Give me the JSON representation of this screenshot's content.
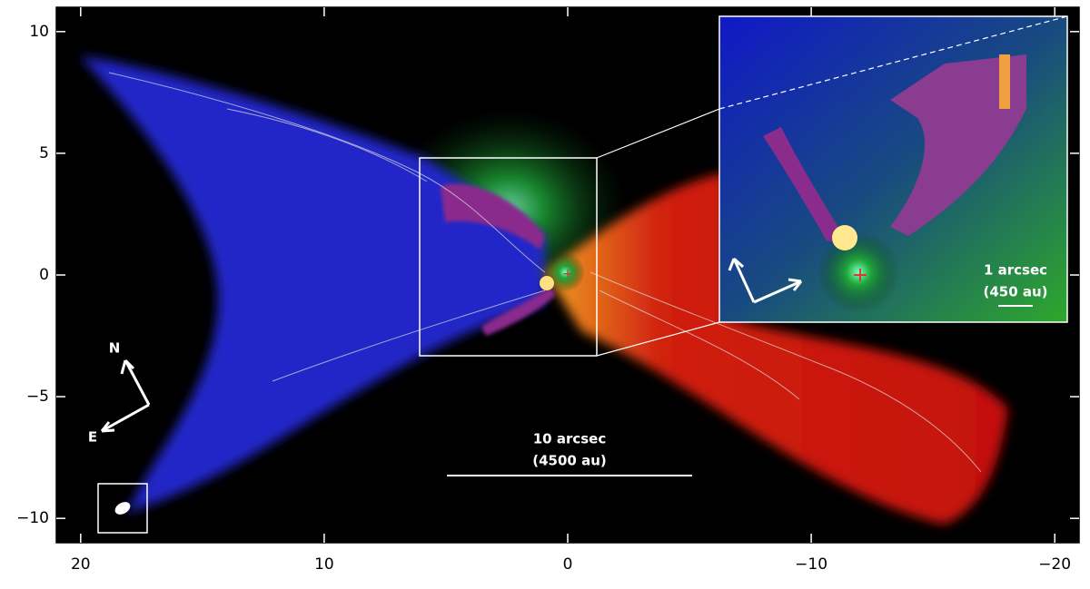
{
  "chart_data": {
    "type": "image",
    "xlim": [
      21,
      -21
    ],
    "ylim": [
      -11,
      11
    ],
    "xticks": [
      20,
      10,
      0,
      {
        "value": -10,
        "label": "−10"
      },
      {
        "value": -20,
        "label": "−20"
      }
    ],
    "yticks": [
      10,
      5,
      0,
      {
        "value": -5,
        "label": "−5"
      },
      {
        "value": -10,
        "label": "−10"
      }
    ],
    "annotations": {
      "scale_bar": [
        "10 arcsec",
        "(4500 au)"
      ],
      "inset_scale_bar": [
        "1 arcsec",
        "(450 au)"
      ],
      "compass": [
        "N",
        "E"
      ]
    }
  }
}
